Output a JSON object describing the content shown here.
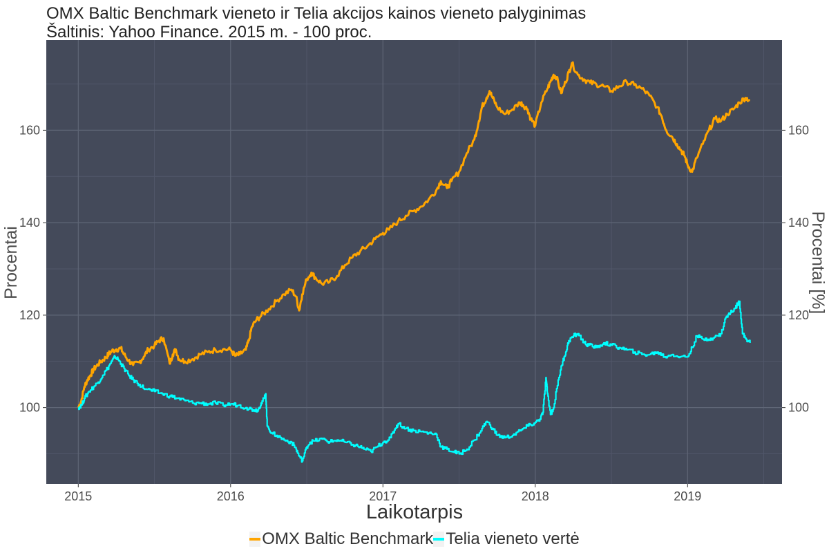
{
  "title": {
    "line1": "OMX Baltic Benchmark vieneto ir Telia akcijos kainos vieneto palyginimas",
    "line2": "Šaltinis: Yahoo Finance. 2015 m. - 100 proc."
  },
  "colors": {
    "panel": "#444a5a",
    "grid_major": "#5f6676",
    "grid_minor": "#51576a",
    "omx": "#ffa500",
    "telia": "#00ffff"
  },
  "chart_data": {
    "type": "line",
    "title": "OMX Baltic Benchmark vieneto ir Telia akcijos kainos vieneto palyginimas",
    "subtitle": "Šaltinis: Yahoo Finance. 2015 m. - 100 proc.",
    "xlabel": "Laikotarpis",
    "ylabel": "Procentai",
    "ylabel_right": "Procentai [%]",
    "x_ticks": [
      "2015",
      "2016",
      "2017",
      "2018",
      "2019"
    ],
    "y_ticks": [
      100,
      120,
      140,
      160
    ],
    "xlim": [
      2014.79,
      2019.62
    ],
    "ylim": [
      83.5,
      179.5
    ],
    "grid": true,
    "legend_position": "bottom",
    "series": [
      {
        "name": "OMX Baltic Benchmark",
        "color": "#ffa500",
        "x": [
          2015.0,
          2015.02,
          2015.04,
          2015.06,
          2015.08,
          2015.1,
          2015.12,
          2015.15,
          2015.18,
          2015.2,
          2015.22,
          2015.25,
          2015.28,
          2015.3,
          2015.33,
          2015.36,
          2015.4,
          2015.43,
          2015.46,
          2015.5,
          2015.53,
          2015.56,
          2015.6,
          2015.62,
          2015.64,
          2015.66,
          2015.7,
          2015.75,
          2015.8,
          2015.85,
          2015.9,
          2015.95,
          2016.0,
          2016.03,
          2016.06,
          2016.1,
          2016.12,
          2016.14,
          2016.17,
          2016.2,
          2016.25,
          2016.3,
          2016.35,
          2016.4,
          2016.43,
          2016.45,
          2016.47,
          2016.5,
          2016.53,
          2016.56,
          2016.6,
          2016.65,
          2016.7,
          2016.75,
          2016.8,
          2016.85,
          2016.9,
          2016.95,
          2017.0,
          2017.04,
          2017.1,
          2017.15,
          2017.2,
          2017.25,
          2017.3,
          2017.35,
          2017.38,
          2017.42,
          2017.45,
          2017.5,
          2017.55,
          2017.6,
          2017.63,
          2017.65,
          2017.68,
          2017.7,
          2017.72,
          2017.75,
          2017.8,
          2017.85,
          2017.9,
          2017.92,
          2017.95,
          2017.97,
          2018.0,
          2018.04,
          2018.08,
          2018.1,
          2018.12,
          2018.14,
          2018.17,
          2018.2,
          2018.22,
          2018.24,
          2018.28,
          2018.32,
          2018.36,
          2018.4,
          2018.45,
          2018.5,
          2018.55,
          2018.6,
          2018.65,
          2018.7,
          2018.75,
          2018.8,
          2018.83,
          2018.86,
          2018.9,
          2018.93,
          2018.96,
          2018.98,
          2019.0,
          2019.03,
          2019.06,
          2019.1,
          2019.14,
          2019.18,
          2019.22,
          2019.26,
          2019.3,
          2019.34,
          2019.38,
          2019.41
        ],
        "values": [
          100,
          101.5,
          104.5,
          106,
          107,
          108.2,
          109,
          110,
          110.8,
          111.6,
          112.2,
          112.6,
          112.8,
          111.5,
          110.2,
          109.2,
          109.8,
          111,
          112.6,
          113.4,
          114.5,
          115,
          109.5,
          111.5,
          112.6,
          110.5,
          110,
          110.5,
          111.5,
          112,
          112.5,
          112.6,
          112.5,
          111.2,
          111.5,
          112.5,
          114.5,
          117.5,
          119,
          119.8,
          121.3,
          123,
          124.5,
          125.5,
          124,
          121,
          124.5,
          127.8,
          129.2,
          128,
          126.8,
          127.2,
          128.5,
          130.8,
          132.5,
          133.8,
          135,
          136.5,
          137.8,
          138.5,
          140.3,
          141.5,
          142.5,
          143.5,
          145,
          147,
          149,
          147.5,
          149,
          151,
          155,
          158,
          162,
          165,
          167,
          168.5,
          167,
          165,
          163.5,
          164.5,
          166,
          165.5,
          164.5,
          162.5,
          161,
          166,
          169,
          170.5,
          172,
          171.5,
          168,
          170.5,
          172.5,
          174.5,
          172,
          171,
          170.3,
          170,
          169.5,
          168.5,
          169.5,
          170.5,
          169.8,
          169,
          167.5,
          165,
          163,
          160,
          158.5,
          157,
          155.5,
          154.5,
          152.5,
          151,
          154,
          157,
          160,
          162.5,
          162,
          163.5,
          164.5,
          166,
          167,
          166.5
        ]
      },
      {
        "name": "Telia vieneto vertė",
        "color": "#00ffff",
        "x": [
          2015.0,
          2015.02,
          2015.04,
          2015.07,
          2015.1,
          2015.13,
          2015.16,
          2015.2,
          2015.22,
          2015.24,
          2015.26,
          2015.28,
          2015.3,
          2015.33,
          2015.36,
          2015.4,
          2015.44,
          2015.5,
          2015.55,
          2015.6,
          2015.65,
          2015.7,
          2015.75,
          2015.8,
          2015.85,
          2015.9,
          2015.95,
          2016.0,
          2016.05,
          2016.1,
          2016.15,
          2016.18,
          2016.2,
          2016.22,
          2016.23,
          2016.24,
          2016.27,
          2016.3,
          2016.35,
          2016.4,
          2016.43,
          2016.45,
          2016.47,
          2016.5,
          2016.52,
          2016.55,
          2016.6,
          2016.65,
          2016.7,
          2016.75,
          2016.8,
          2016.85,
          2016.88,
          2016.92,
          2016.96,
          2017.0,
          2017.05,
          2017.08,
          2017.1,
          2017.15,
          2017.2,
          2017.25,
          2017.3,
          2017.35,
          2017.38,
          2017.42,
          2017.46,
          2017.5,
          2017.55,
          2017.6,
          2017.65,
          2017.68,
          2017.72,
          2017.75,
          2017.8,
          2017.85,
          2017.9,
          2017.95,
          2018.0,
          2018.03,
          2018.05,
          2018.07,
          2018.08,
          2018.1,
          2018.12,
          2018.15,
          2018.18,
          2018.2,
          2018.22,
          2018.25,
          2018.28,
          2018.32,
          2018.35,
          2018.4,
          2018.45,
          2018.5,
          2018.55,
          2018.6,
          2018.65,
          2018.7,
          2018.75,
          2018.8,
          2018.85,
          2018.9,
          2018.95,
          2019.0,
          2019.03,
          2019.06,
          2019.1,
          2019.15,
          2019.2,
          2019.22,
          2019.25,
          2019.28,
          2019.31,
          2019.33,
          2019.34,
          2019.36,
          2019.38,
          2019.41
        ],
        "values": [
          100,
          100.5,
          102,
          103.5,
          104.5,
          105.5,
          107,
          109,
          110,
          111,
          110.5,
          109.5,
          108.5,
          107,
          106,
          105,
          104,
          103.5,
          103,
          102.5,
          102,
          101.5,
          101,
          101,
          100.8,
          101,
          100.5,
          100.8,
          100.5,
          100,
          99.5,
          99.5,
          101,
          102,
          103,
          96,
          94.5,
          94,
          93,
          92.5,
          91,
          89.5,
          88.5,
          91.5,
          92.5,
          92.8,
          93.2,
          92.6,
          93,
          92.5,
          92,
          91.5,
          91,
          90.5,
          91.5,
          92.5,
          93.5,
          95.5,
          96.5,
          95.5,
          95,
          94.8,
          94.5,
          94.2,
          91.5,
          91,
          90.5,
          90,
          91,
          93,
          95.5,
          97,
          95.5,
          94,
          93.5,
          94,
          95,
          96,
          96.8,
          97.5,
          99,
          106.5,
          103,
          98.5,
          100,
          106,
          110,
          112,
          114.5,
          115.5,
          116,
          114,
          113.5,
          113,
          114,
          113.5,
          113,
          112.5,
          112,
          111.5,
          111.5,
          112,
          111,
          111.5,
          111,
          111,
          113,
          115.5,
          114.8,
          115,
          115.5,
          116,
          119.5,
          120.5,
          121.5,
          122.5,
          123,
          116,
          115,
          114
        ]
      }
    ]
  }
}
